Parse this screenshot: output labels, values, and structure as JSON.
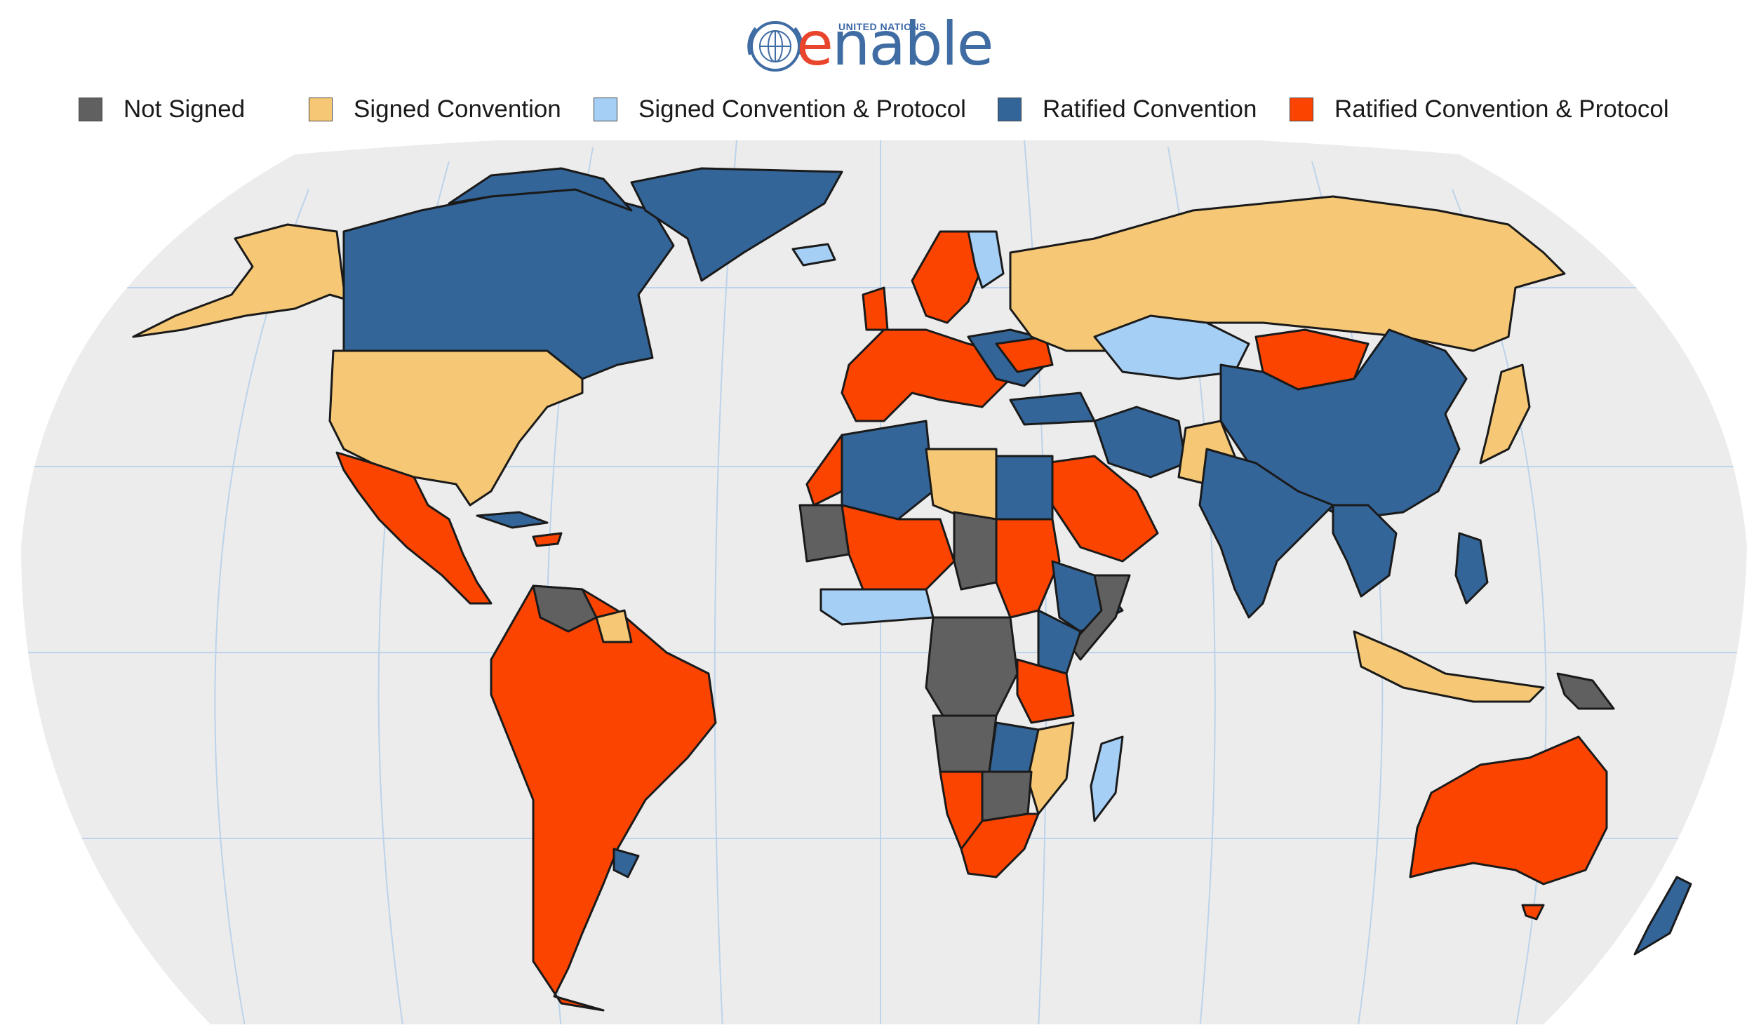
{
  "logo": {
    "org": "UNITED NATIONS",
    "word_first": "e",
    "word_rest": "nable"
  },
  "legend": {
    "items": [
      {
        "label": "Not Signed",
        "color": "#606060"
      },
      {
        "label": "Signed Convention",
        "color": "#f6c875"
      },
      {
        "label": "Signed Convention & Protocol",
        "color": "#a6cff6"
      },
      {
        "label": "Ratified Convention",
        "color": "#336599"
      },
      {
        "label": "Ratified Convention & Protocol",
        "color": "#fb4400"
      }
    ]
  },
  "map": {
    "ocean_color": "#ececec",
    "border_color": "#1a1a1a",
    "regions": [
      {
        "name": "Canada",
        "status": "Ratified Convention"
      },
      {
        "name": "Greenland",
        "status": "Ratified Convention"
      },
      {
        "name": "Alaska",
        "status": "Signed Convention"
      },
      {
        "name": "United States",
        "status": "Signed Convention"
      },
      {
        "name": "Mexico & Central America",
        "status": "Ratified Convention & Protocol"
      },
      {
        "name": "Cuba",
        "status": "Ratified Convention"
      },
      {
        "name": "South America",
        "status": "Ratified Convention & Protocol"
      },
      {
        "name": "Venezuela",
        "status": "Not Signed"
      },
      {
        "name": "Guyana / Suriname",
        "status": "Signed Convention"
      },
      {
        "name": "Uruguay",
        "status": "Ratified Convention"
      },
      {
        "name": "Iceland",
        "status": "Signed Convention & Protocol"
      },
      {
        "name": "Western Europe",
        "status": "Ratified Convention & Protocol"
      },
      {
        "name": "Eastern Europe",
        "status": "Ratified Convention"
      },
      {
        "name": "Russia",
        "status": "Signed Convention"
      },
      {
        "name": "Kazakhstan",
        "status": "Signed Convention & Protocol"
      },
      {
        "name": "Mongolia",
        "status": "Ratified Convention & Protocol"
      },
      {
        "name": "China",
        "status": "Ratified Convention"
      },
      {
        "name": "Japan",
        "status": "Signed Convention"
      },
      {
        "name": "India",
        "status": "Ratified Convention"
      },
      {
        "name": "Pakistan",
        "status": "Signed Convention"
      },
      {
        "name": "Saudi Arabia",
        "status": "Ratified Convention & Protocol"
      },
      {
        "name": "Iran",
        "status": "Ratified Convention"
      },
      {
        "name": "Algeria",
        "status": "Ratified Convention"
      },
      {
        "name": "Libya",
        "status": "Signed Convention"
      },
      {
        "name": "Egypt",
        "status": "Ratified Convention"
      },
      {
        "name": "Sudan",
        "status": "Ratified Convention & Protocol"
      },
      {
        "name": "Mali / Niger",
        "status": "Ratified Convention & Protocol"
      },
      {
        "name": "Chad",
        "status": "Not Signed"
      },
      {
        "name": "Ethiopia",
        "status": "Ratified Convention"
      },
      {
        "name": "Somalia",
        "status": "Not Signed"
      },
      {
        "name": "DR Congo",
        "status": "Not Signed"
      },
      {
        "name": "Angola",
        "status": "Not Signed"
      },
      {
        "name": "Namibia",
        "status": "Ratified Convention & Protocol"
      },
      {
        "name": "Botswana",
        "status": "Not Signed"
      },
      {
        "name": "South Africa",
        "status": "Ratified Convention & Protocol"
      },
      {
        "name": "Tanzania",
        "status": "Ratified Convention & Protocol"
      },
      {
        "name": "Mozambique",
        "status": "Signed Convention"
      },
      {
        "name": "Madagascar",
        "status": "Signed Convention & Protocol"
      },
      {
        "name": "Southeast Asia",
        "status": "Ratified Convention"
      },
      {
        "name": "Indonesia",
        "status": "Signed Convention"
      },
      {
        "name": "Papua New Guinea",
        "status": "Not Signed"
      },
      {
        "name": "Philippines",
        "status": "Ratified Convention"
      },
      {
        "name": "Australia",
        "status": "Ratified Convention & Protocol"
      },
      {
        "name": "New Zealand",
        "status": "Ratified Convention"
      }
    ]
  }
}
